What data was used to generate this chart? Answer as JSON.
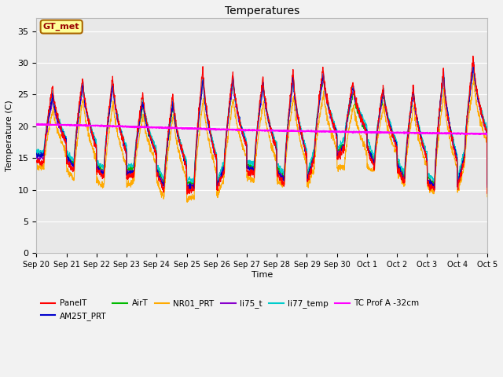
{
  "title": "Temperatures",
  "xlabel": "Time",
  "ylabel": "Temperature (C)",
  "ylim": [
    0,
    37
  ],
  "yticks": [
    0,
    5,
    10,
    15,
    20,
    25,
    30,
    35
  ],
  "date_labels": [
    "Sep 20",
    "Sep 21",
    "Sep 22",
    "Sep 23",
    "Sep 24",
    "Sep 25",
    "Sep 26",
    "Sep 27",
    "Sep 28",
    "Sep 29",
    "Sep 30",
    "Oct 1",
    "Oct 2",
    "Oct 3",
    "Oct 4",
    "Oct 5"
  ],
  "colors": {
    "PanelT": "#ff0000",
    "AM25T_PRT": "#0000cc",
    "AirT": "#00bb00",
    "NR01_PRT": "#ffaa00",
    "li75_t": "#8800cc",
    "li77_temp": "#00cccc",
    "TC_Prof_A": "#ff00ff"
  },
  "fig_bg": "#f2f2f2",
  "plot_bg": "#e8e8e8",
  "gt_met_box_color": "#ffff99",
  "gt_met_text_color": "#990000",
  "gt_met_border_color": "#aa6600"
}
